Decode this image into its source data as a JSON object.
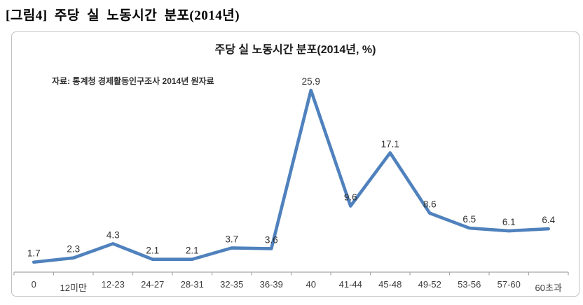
{
  "page": {
    "figure_label": "[그림4] 주당 실 노동시간 분포(2014년)"
  },
  "chart_data": {
    "type": "line",
    "title": "주당 실 노동시간 분포(2014년, %)",
    "source_note": "자료: 통계청 경제활동인구조사 2014년 원자료",
    "categories": [
      "0",
      "12미만",
      "12-23",
      "24-27",
      "28-31",
      "32-35",
      "36-39",
      "40",
      "41-44",
      "45-48",
      "49-52",
      "53-56",
      "57-60",
      "60초과"
    ],
    "values": [
      1.7,
      2.3,
      4.3,
      2.1,
      2.1,
      3.7,
      3.6,
      25.9,
      9.6,
      17.1,
      8.6,
      6.5,
      6.1,
      6.4
    ],
    "xlabel": "",
    "ylabel": "",
    "ylim": [
      0,
      28
    ],
    "grid": false,
    "legend": "none",
    "data_labels": true,
    "colors": {
      "line": "#4F81BD",
      "data_label": "#333333",
      "axis": "#a6a6a6",
      "chart_border": "#c3c3c3",
      "title": "#1a1a1a"
    }
  }
}
